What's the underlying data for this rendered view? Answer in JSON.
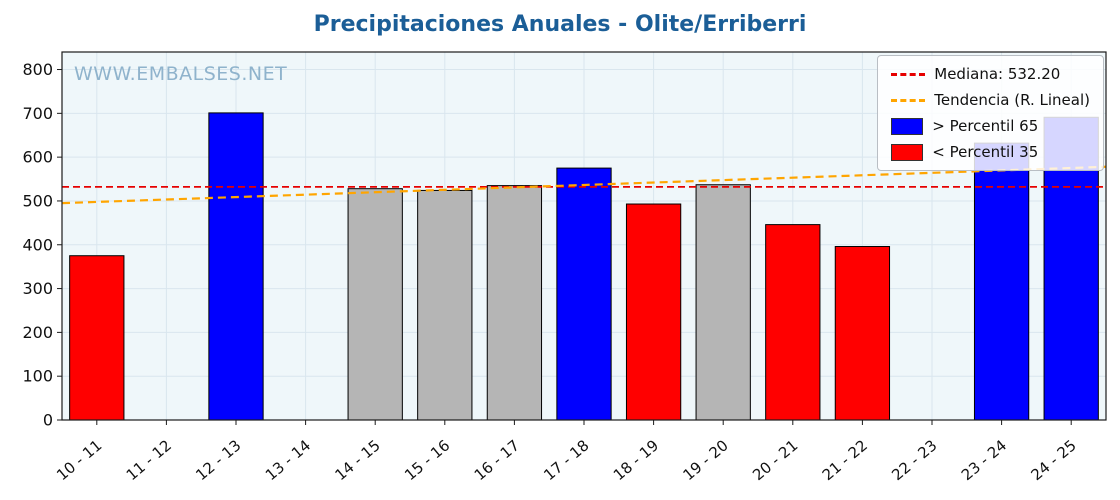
{
  "title": "Precipitaciones Anuales - Olite/Erriberri",
  "watermark": "WWW.EMBALSES.NET",
  "colors": {
    "above": "#0000ff",
    "below": "#ff0000",
    "mid": "#b5b5b5",
    "bar_edge": "#000000",
    "median_line": "#e60000",
    "trend_line": "#ffa500",
    "title": "#1b5e97",
    "watermark": "#8fb3cc",
    "plot_bg": "#eff7fa",
    "grid": "#d9e6ee",
    "axis": "#1a1a1a"
  },
  "chart_data": {
    "type": "bar",
    "title": "Precipitaciones Anuales - Olite/Erriberri",
    "xlabel": "",
    "ylabel": "",
    "ylim": [
      0,
      840
    ],
    "yticks": [
      0,
      100,
      200,
      300,
      400,
      500,
      600,
      700,
      800
    ],
    "categories": [
      "10 - 11",
      "11 - 12",
      "12 - 13",
      "13 - 14",
      "14 - 15",
      "15 - 16",
      "16 - 17",
      "17 - 18",
      "18 - 19",
      "19 - 20",
      "20 - 21",
      "21 - 22",
      "22 - 23",
      "23 - 24",
      "24 - 25"
    ],
    "values": [
      375,
      null,
      701,
      null,
      528,
      524,
      535,
      575,
      493,
      537,
      446,
      396,
      null,
      632,
      691
    ],
    "bar_classes": [
      "below",
      null,
      "above",
      null,
      "mid",
      "mid",
      "mid",
      "above",
      "below",
      "mid",
      "below",
      "below",
      null,
      "above",
      "above"
    ],
    "median": {
      "value": 532.2,
      "label": "Mediana: 532.20"
    },
    "trend": {
      "label": "Tendencia (R. Lineal)",
      "left_value": 495,
      "right_value": 578
    },
    "grid": true,
    "legend_position": "upper right"
  },
  "legend": {
    "items": [
      {
        "key": "median",
        "type": "dash",
        "color": "#e60000",
        "label": "Mediana: 532.20"
      },
      {
        "key": "trend",
        "type": "dash",
        "color": "#ffa500",
        "label": "Tendencia (R. Lineal)"
      },
      {
        "key": "p65",
        "type": "patch",
        "color": "#0000ff",
        "label": "> Percentil 65"
      },
      {
        "key": "p35",
        "type": "patch",
        "color": "#ff0000",
        "label": "< Percentil 35"
      }
    ]
  }
}
